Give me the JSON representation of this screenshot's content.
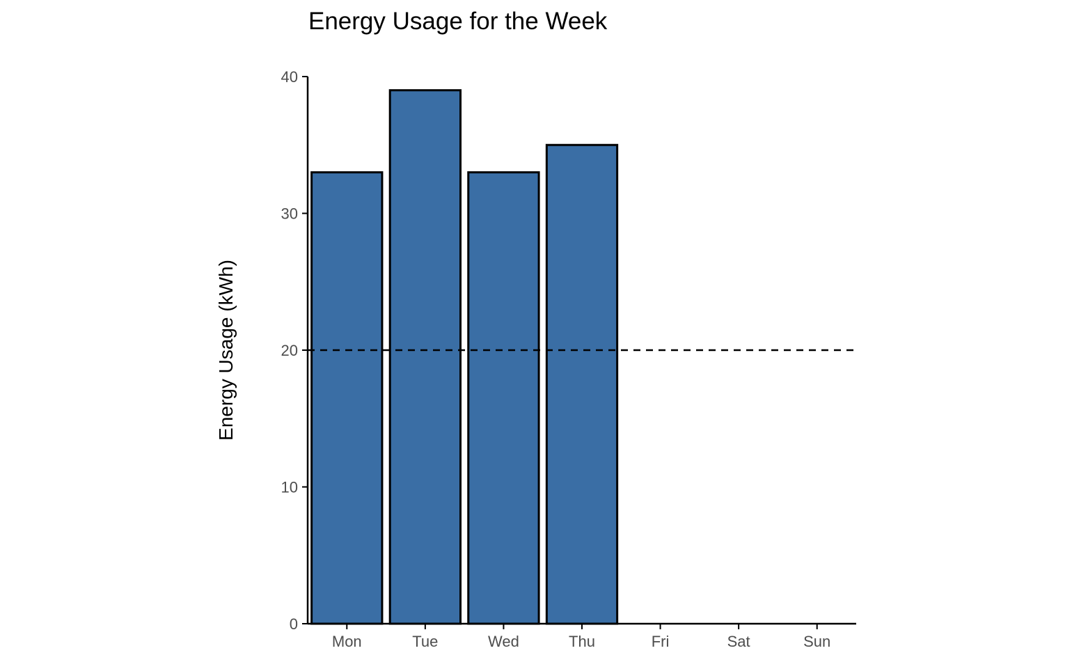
{
  "chart_data": {
    "type": "bar",
    "title": "Energy Usage for the Week",
    "xlabel": "",
    "ylabel": "Energy Usage (kWh)",
    "categories": [
      "Mon",
      "Tue",
      "Wed",
      "Thu",
      "Fri",
      "Sat",
      "Sun"
    ],
    "values": [
      33,
      39,
      33,
      35,
      null,
      null,
      null
    ],
    "ylim": [
      0,
      40
    ],
    "yticks": [
      0,
      10,
      20,
      30,
      40
    ],
    "reference_line": {
      "y": 20,
      "style": "dashed"
    },
    "grid": false,
    "legend": "none",
    "colors": {
      "bar_fill": "#3a6ea5",
      "bar_stroke": "#000000",
      "axis": "#000000",
      "reference_line": "#000000"
    }
  }
}
